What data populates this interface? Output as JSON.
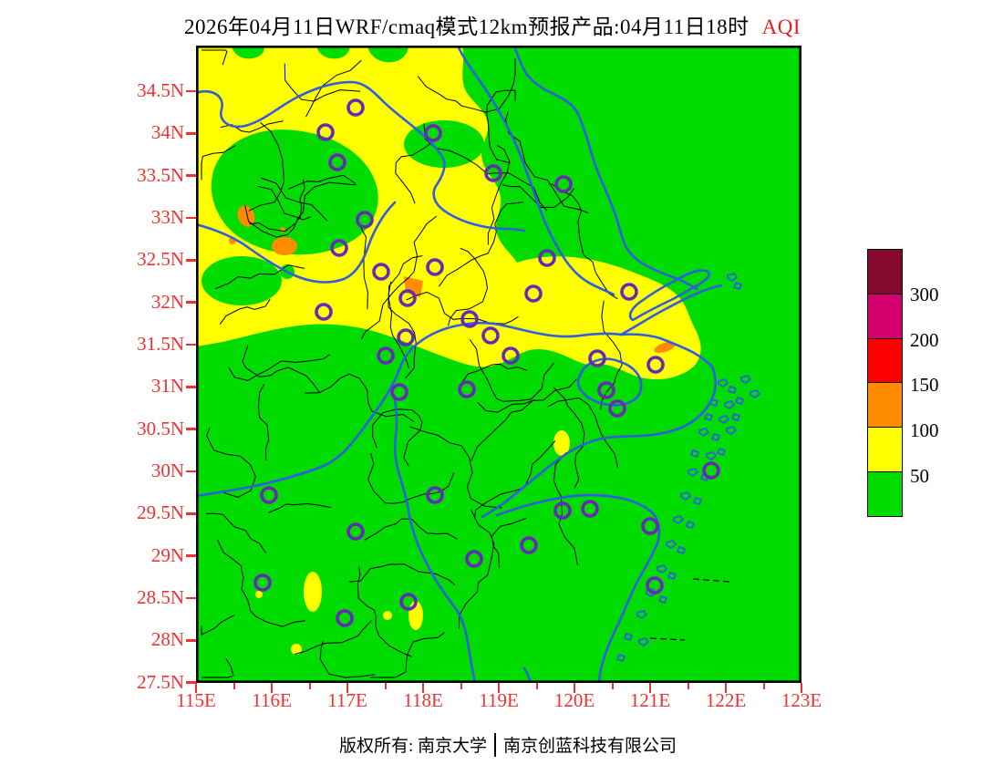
{
  "title": {
    "text": "2026年04月11日WRF/cmaq模式12km预报产品:04月11日18时",
    "variable": "AQI"
  },
  "axes": {
    "y_labels": [
      "34.5N",
      "34N",
      "33.5N",
      "33N",
      "32.5N",
      "32N",
      "31.5N",
      "31N",
      "30.5N",
      "30N",
      "29.5N",
      "29N",
      "28.5N",
      "28N",
      "27.5N"
    ],
    "x_labels": [
      "115E",
      "116E",
      "117E",
      "118E",
      "119E",
      "120E",
      "121E",
      "122E",
      "123E"
    ],
    "lon_range": [
      115,
      123
    ],
    "lat_range": [
      27.5,
      35
    ]
  },
  "legend": {
    "labels": [
      "300",
      "200",
      "150",
      "100",
      "50"
    ],
    "colors": [
      "#85082e",
      "#d4006e",
      "#ff0000",
      "#ff8c00",
      "#ffff00",
      "#00db00"
    ]
  },
  "footer": {
    "owner": "版权所有: 南京大学",
    "company": "南京创蓝科技有限公司"
  },
  "map_colors": {
    "aqi_good_green": "#00db00",
    "aqi_moderate_yellow": "#ffff00",
    "aqi_unhealthy_orange": "#ff8c00",
    "province_boundary_blue": "#2f5fe0",
    "county_boundary_black": "#000000",
    "city_marker_purple": "#6629b8",
    "axis_label_red": "#f23030"
  }
}
